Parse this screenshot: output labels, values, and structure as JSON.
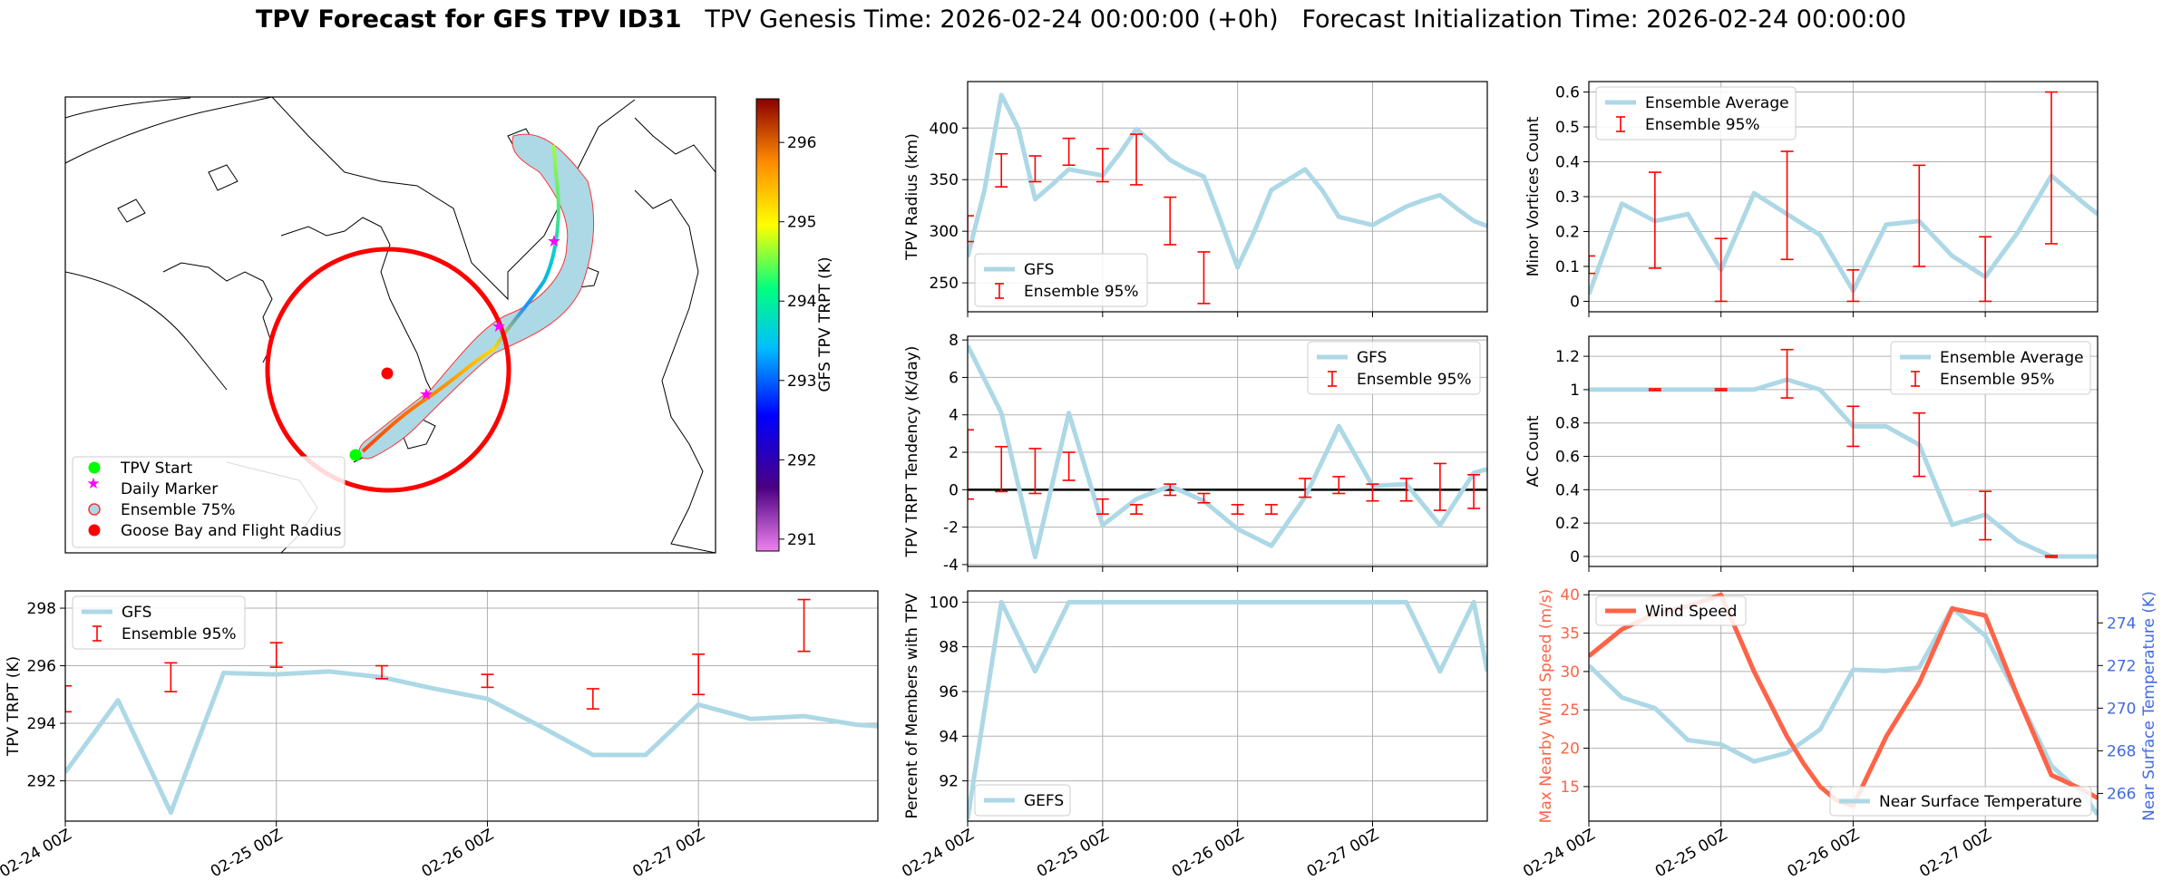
{
  "title": {
    "bold": "TPV Forecast for GFS TPV ID31",
    "rest": "   TPV Genesis Time: 2026-02-24 00:00:00 (+0h)   Forecast Initialization Time: 2026-02-24 00:00:00"
  },
  "colors": {
    "gfs": "#add8e6",
    "ensemble": "#ff0000",
    "wind": "#ff6347",
    "temp_axis": "#4169e1",
    "grid": "#b0b0b0"
  },
  "map": {
    "legend": [
      "TPV Start",
      "Daily Marker",
      "Ensemble 75%",
      "Goose Bay and Flight Radius"
    ],
    "colorbar": {
      "label": "GFS TPV TRPT (K)",
      "ticks": [
        291,
        292,
        293,
        294,
        295,
        296
      ],
      "range": [
        290.85,
        296.55
      ]
    }
  },
  "chart_data": [
    {
      "id": "trpt",
      "type": "line",
      "ylabel": "TPV TRPT (K)",
      "xlim": [
        0,
        3.85
      ],
      "ylim": [
        290.6,
        298.6
      ],
      "yticks": [
        292,
        294,
        296,
        298
      ],
      "xtick_labels": [
        "02-24 00Z",
        "02-25 00Z",
        "02-26 00Z",
        "02-27 00Z"
      ],
      "xtick_values": [
        0,
        1,
        2,
        3
      ],
      "legend": [
        "GFS",
        "Ensemble 95%"
      ],
      "legend_loc": "upper left",
      "gfs": {
        "x": [
          0,
          0.25,
          0.5,
          0.75,
          1.0,
          1.25,
          1.5,
          1.75,
          2.0,
          2.25,
          2.5,
          2.75,
          3.0,
          3.25,
          3.5,
          3.75,
          3.85
        ],
        "y": [
          292.3,
          294.8,
          290.9,
          295.75,
          295.7,
          295.8,
          295.6,
          295.2,
          294.85,
          293.9,
          292.9,
          292.9,
          294.65,
          294.15,
          294.25,
          293.95,
          293.9
        ]
      },
      "ensemble": [
        {
          "x": 0,
          "lo": 294.4,
          "hi": 295.3
        },
        {
          "x": 0.5,
          "lo": 295.1,
          "hi": 296.1
        },
        {
          "x": 1.0,
          "lo": 295.95,
          "hi": 296.8
        },
        {
          "x": 1.5,
          "lo": 295.55,
          "hi": 296.0
        },
        {
          "x": 2.0,
          "lo": 295.25,
          "hi": 295.7
        },
        {
          "x": 2.5,
          "lo": 294.5,
          "hi": 295.2
        },
        {
          "x": 3.0,
          "lo": 295.0,
          "hi": 296.4
        },
        {
          "x": 3.5,
          "lo": 296.5,
          "hi": 298.3
        }
      ]
    },
    {
      "id": "radius",
      "type": "line",
      "ylabel": "TPV Radius (km)",
      "xlim": [
        0,
        3.85
      ],
      "ylim": [
        222,
        445
      ],
      "yticks": [
        250,
        300,
        350,
        400
      ],
      "xtick_values": [
        0,
        1,
        2,
        3
      ],
      "legend": [
        "GFS",
        "Ensemble 95%"
      ],
      "legend_loc": "lower left",
      "gfs": {
        "x": [
          0,
          0.125,
          0.25,
          0.375,
          0.5,
          0.625,
          0.75,
          0.875,
          1.0,
          1.125,
          1.25,
          1.375,
          1.5,
          1.625,
          1.75,
          1.875,
          2.0,
          2.125,
          2.25,
          2.375,
          2.5,
          2.625,
          2.75,
          2.875,
          3.0,
          3.125,
          3.25,
          3.375,
          3.5,
          3.625,
          3.75,
          3.85
        ],
        "y": [
          275,
          340,
          432,
          400,
          331,
          345,
          360,
          357,
          354,
          375,
          399,
          385,
          369,
          360,
          353,
          310,
          265,
          300,
          340,
          350,
          360,
          340,
          314,
          310,
          306,
          315,
          324,
          330,
          335,
          322,
          310,
          305
        ]
      },
      "ensemble": [
        {
          "x": 0,
          "lo": 290,
          "hi": 315
        },
        {
          "x": 0.25,
          "lo": 343,
          "hi": 375
        },
        {
          "x": 0.5,
          "lo": 348,
          "hi": 373
        },
        {
          "x": 0.75,
          "lo": 364,
          "hi": 390
        },
        {
          "x": 1.0,
          "lo": 348,
          "hi": 380
        },
        {
          "x": 1.25,
          "lo": 345,
          "hi": 394
        },
        {
          "x": 1.5,
          "lo": 287,
          "hi": 333
        },
        {
          "x": 1.75,
          "lo": 230,
          "hi": 280
        }
      ]
    },
    {
      "id": "minor",
      "type": "line",
      "ylabel": "Minor Vortices Count",
      "xlim": [
        0,
        3.85
      ],
      "ylim": [
        -0.03,
        0.63
      ],
      "yticks": [
        0.0,
        0.1,
        0.2,
        0.3,
        0.4,
        0.5,
        0.6
      ],
      "xtick_values": [
        0,
        1,
        2,
        3
      ],
      "legend": [
        "Ensemble Average",
        "Ensemble 95%"
      ],
      "legend_loc": "upper left",
      "gfs": {
        "x": [
          0,
          0.25,
          0.5,
          0.75,
          1.0,
          1.25,
          1.5,
          1.75,
          2.0,
          2.25,
          2.5,
          2.75,
          3.0,
          3.25,
          3.5,
          3.75,
          3.85
        ],
        "y": [
          0.02,
          0.28,
          0.23,
          0.25,
          0.09,
          0.31,
          0.25,
          0.19,
          0.03,
          0.22,
          0.23,
          0.13,
          0.07,
          0.2,
          0.36,
          0.28,
          0.25
        ]
      },
      "ensemble": [
        {
          "x": 0,
          "lo": 0.08,
          "hi": 0.13
        },
        {
          "x": 0.5,
          "lo": 0.095,
          "hi": 0.37
        },
        {
          "x": 1.0,
          "lo": 0.0,
          "hi": 0.18
        },
        {
          "x": 1.5,
          "lo": 0.12,
          "hi": 0.43
        },
        {
          "x": 2.0,
          "lo": 0.0,
          "hi": 0.09
        },
        {
          "x": 2.5,
          "lo": 0.1,
          "hi": 0.39
        },
        {
          "x": 3.0,
          "lo": 0.0,
          "hi": 0.185
        },
        {
          "x": 3.5,
          "lo": 0.165,
          "hi": 0.6
        }
      ]
    },
    {
      "id": "tendency",
      "type": "line",
      "ylabel": "TPV TRPT Tendency (K/day)",
      "xlim": [
        0,
        3.85
      ],
      "ylim": [
        -4.1,
        8.2
      ],
      "yticks": [
        -4,
        -2,
        0,
        2,
        4,
        6,
        8
      ],
      "xtick_values": [
        0,
        1,
        2,
        3
      ],
      "legend": [
        "GFS",
        "Ensemble 95%"
      ],
      "legend_loc": "upper right",
      "zero_line": true,
      "gfs": {
        "x": [
          0,
          0.25,
          0.5,
          0.75,
          1.0,
          1.25,
          1.5,
          1.75,
          2.0,
          2.25,
          2.5,
          2.75,
          3.0,
          3.25,
          3.5,
          3.75,
          3.85
        ],
        "y": [
          7.7,
          4.1,
          -3.6,
          4.1,
          -1.9,
          -0.5,
          0.2,
          -0.6,
          -2.1,
          -3.0,
          -0.4,
          3.4,
          0.2,
          0.3,
          -1.9,
          0.9,
          1.1
        ]
      },
      "ensemble": [
        {
          "x": 0,
          "lo": -0.5,
          "hi": 3.2
        },
        {
          "x": 0.25,
          "lo": -0.1,
          "hi": 2.3
        },
        {
          "x": 0.5,
          "lo": -0.2,
          "hi": 2.2
        },
        {
          "x": 0.75,
          "lo": 0.5,
          "hi": 2.0
        },
        {
          "x": 1.0,
          "lo": -1.3,
          "hi": -0.5
        },
        {
          "x": 1.25,
          "lo": -1.3,
          "hi": -0.8
        },
        {
          "x": 1.5,
          "lo": -0.3,
          "hi": 0.3
        },
        {
          "x": 1.75,
          "lo": -0.7,
          "hi": -0.2
        },
        {
          "x": 2.0,
          "lo": -1.3,
          "hi": -0.8
        },
        {
          "x": 2.25,
          "lo": -1.3,
          "hi": -0.8
        },
        {
          "x": 2.5,
          "lo": -0.4,
          "hi": 0.6
        },
        {
          "x": 2.75,
          "lo": -0.2,
          "hi": 0.7
        },
        {
          "x": 3.0,
          "lo": -0.6,
          "hi": 0.3
        },
        {
          "x": 3.25,
          "lo": -0.6,
          "hi": 0.6
        },
        {
          "x": 3.5,
          "lo": -1.1,
          "hi": 1.4
        },
        {
          "x": 3.75,
          "lo": -1.0,
          "hi": 0.8
        }
      ]
    },
    {
      "id": "ac",
      "type": "line",
      "ylabel": "AC Count",
      "xlim": [
        0,
        3.85
      ],
      "ylim": [
        -0.06,
        1.32
      ],
      "yticks": [
        0.0,
        0.2,
        0.4,
        0.6,
        0.8,
        1.0,
        1.2
      ],
      "xtick_values": [
        0,
        1,
        2,
        3
      ],
      "legend": [
        "Ensemble Average",
        "Ensemble 95%"
      ],
      "legend_loc": "upper right",
      "gfs": {
        "x": [
          0,
          0.25,
          0.5,
          0.75,
          1.0,
          1.25,
          1.5,
          1.75,
          2.0,
          2.25,
          2.5,
          2.75,
          3.0,
          3.25,
          3.5,
          3.75,
          3.85
        ],
        "y": [
          1.0,
          1.0,
          1.0,
          1.0,
          1.0,
          1.0,
          1.06,
          1.0,
          0.78,
          0.78,
          0.67,
          0.19,
          0.25,
          0.09,
          0.0,
          0.0,
          0.0
        ]
      },
      "ensemble": [
        {
          "x": 0.5,
          "lo": 0.995,
          "hi": 1.005
        },
        {
          "x": 1.0,
          "lo": 0.995,
          "hi": 1.005
        },
        {
          "x": 1.5,
          "lo": 0.95,
          "hi": 1.24
        },
        {
          "x": 2.0,
          "lo": 0.66,
          "hi": 0.9
        },
        {
          "x": 2.5,
          "lo": 0.48,
          "hi": 0.86
        },
        {
          "x": 3.0,
          "lo": 0.1,
          "hi": 0.39
        },
        {
          "x": 3.5,
          "lo": -0.005,
          "hi": 0.005
        }
      ]
    },
    {
      "id": "percent",
      "type": "line",
      "ylabel": "Percent of Members with TPV",
      "xlim": [
        0,
        3.85
      ],
      "ylim": [
        90.2,
        100.5
      ],
      "yticks": [
        92,
        94,
        96,
        98,
        100
      ],
      "xtick_labels": [
        "02-24 00Z",
        "02-25 00Z",
        "02-26 00Z",
        "02-27 00Z"
      ],
      "xtick_values": [
        0,
        1,
        2,
        3
      ],
      "legend": [
        "GEFS"
      ],
      "legend_loc": "lower left",
      "gfs": {
        "x": [
          0,
          0.25,
          0.5,
          0.75,
          1.0,
          1.25,
          1.5,
          1.75,
          2.0,
          2.25,
          2.5,
          2.75,
          3.0,
          3.25,
          3.5,
          3.75,
          3.85
        ],
        "y": [
          90.3,
          100,
          96.9,
          100,
          100,
          100,
          100,
          100,
          100,
          100,
          100,
          100,
          100,
          100,
          96.9,
          100,
          96.9
        ]
      }
    },
    {
      "id": "wind",
      "type": "line",
      "ylabel": "Max Nearby Wind Speed (m/s)",
      "ylabel2": "Near Surface Temperature (K)",
      "xlim": [
        0,
        3.85
      ],
      "ylim": [
        10.5,
        40.5
      ],
      "yticks": [
        15,
        20,
        25,
        30,
        35,
        40
      ],
      "ylim2": [
        264.7,
        275.5
      ],
      "yticks2": [
        266,
        268,
        270,
        272,
        274
      ],
      "xtick_labels": [
        "02-24 00Z",
        "02-25 00Z",
        "02-26 00Z",
        "02-27 00Z"
      ],
      "xtick_values": [
        0,
        1,
        2,
        3
      ],
      "legend": [
        "Wind Speed"
      ],
      "legend2": [
        "Near Surface Temperature"
      ],
      "wind": {
        "x": [
          0,
          0.25,
          0.5,
          0.75,
          1.0,
          1.25,
          1.5,
          1.625,
          1.75,
          1.875,
          2.0,
          2.25,
          2.5,
          2.75,
          3.0,
          3.25,
          3.5,
          3.75,
          3.85
        ],
        "y": [
          32,
          35.5,
          37.5,
          38.5,
          40,
          30,
          21.5,
          18,
          15,
          13.2,
          12.5,
          21.5,
          28.5,
          38.2,
          37.3,
          26.5,
          16.5,
          14.5,
          13.5
        ]
      },
      "temp": {
        "x": [
          0,
          0.25,
          0.5,
          0.75,
          1.0,
          1.25,
          1.5,
          1.75,
          2.0,
          2.25,
          2.5,
          2.75,
          3.0,
          3.25,
          3.5,
          3.75,
          3.85
        ],
        "y": [
          272.0,
          270.5,
          270.0,
          268.5,
          268.3,
          267.5,
          267.9,
          269.0,
          271.8,
          271.75,
          271.9,
          274.7,
          273.4,
          270.5,
          267.3,
          265.9,
          265.0
        ]
      }
    }
  ]
}
